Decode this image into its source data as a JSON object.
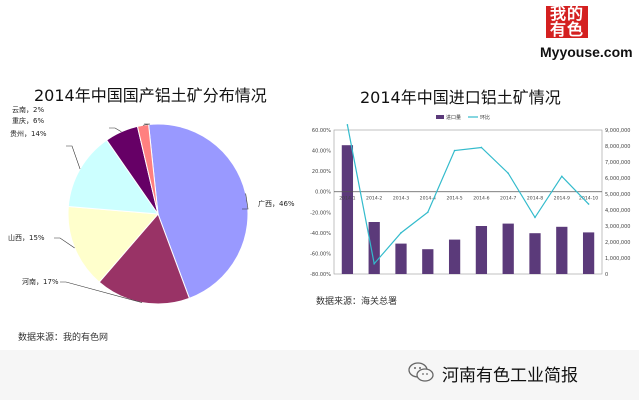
{
  "logo": {
    "mark_line1": "我的",
    "mark_line2": "有色",
    "brand": "Myyouse.com"
  },
  "footer": {
    "account": "河南有色工业简报",
    "icon": "wechat-icon"
  },
  "chart_data": [
    {
      "type": "pie",
      "title": "2014年中国国产铝土矿分布情况",
      "source": "数据来源：我的有色网",
      "slices": [
        {
          "label": "广西，46%",
          "value": 46,
          "color": "#9999ff"
        },
        {
          "label": "河南，17%",
          "value": 17,
          "color": "#993366"
        },
        {
          "label": "山西，15%",
          "value": 15,
          "color": "#ffffcc"
        },
        {
          "label": "贵州，14%",
          "value": 14,
          "color": "#ccffff"
        },
        {
          "label": "重庆，6%",
          "value": 6,
          "color": "#660066"
        },
        {
          "label": "云南，2%",
          "value": 2,
          "color": "#ff8080"
        }
      ]
    },
    {
      "type": "bar",
      "title": "2014年中国进口铝土矿情况",
      "source": "数据来源：海关总署",
      "categories": [
        "2014-1",
        "2014-2",
        "2014-3",
        "2014-4",
        "2014-5",
        "2014-6",
        "2014-7",
        "2014-8",
        "2014-9",
        "2014-10"
      ],
      "series": [
        {
          "name": "进口量",
          "type": "bar",
          "axis": "right",
          "color": "#5b3a7a",
          "values": [
            8050000,
            3250000,
            1900000,
            1550000,
            2150000,
            3000000,
            3150000,
            2550000,
            2950000,
            2600000
          ]
        },
        {
          "name": "环比",
          "type": "line",
          "axis": "left",
          "color": "#33bbcc",
          "values": [
            65,
            -70,
            -40,
            -20,
            40,
            43,
            18,
            -25,
            15,
            -12
          ]
        }
      ],
      "left_axis": {
        "min": -80,
        "max": 60,
        "step": 20,
        "ticks": [
          "60.00%",
          "40.00%",
          "20.00%",
          "0.00%",
          "-20.00%",
          "-40.00%",
          "-60.00%",
          "-80.00%"
        ]
      },
      "right_axis": {
        "min": 0,
        "max": 9000000,
        "step": 1000000,
        "ticks": [
          "9,000,000",
          "8,000,000",
          "7,000,000",
          "6,000,000",
          "5,000,000",
          "4,000,000",
          "3,000,000",
          "2,000,000",
          "1,000,000",
          "0"
        ]
      },
      "legend_position": "top"
    }
  ]
}
